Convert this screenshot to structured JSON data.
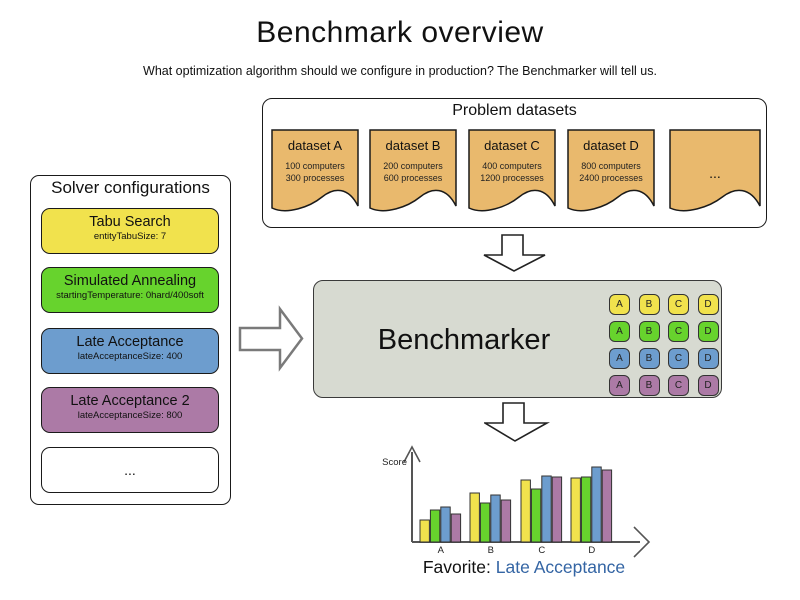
{
  "title": "Benchmark overview",
  "subtitle": "What optimization algorithm should we configure in production? The Benchmarker will tell us.",
  "problem_datasets": {
    "title": "Problem datasets",
    "card_color": "#e9b96d",
    "datasets": [
      {
        "name": "dataset A",
        "computers": "100 computers",
        "processes": "300 processes"
      },
      {
        "name": "dataset B",
        "computers": "200 computers",
        "processes": "600 processes"
      },
      {
        "name": "dataset C",
        "computers": "400 computers",
        "processes": "1200 processes"
      },
      {
        "name": "dataset D",
        "computers": "800 computers",
        "processes": "2400 processes"
      },
      {
        "name": "...",
        "computers": "",
        "processes": ""
      }
    ]
  },
  "solver_configurations": {
    "title": "Solver configurations",
    "solvers": [
      {
        "name": "Tabu Search",
        "config": "entityTabuSize: 7",
        "color": "#f1e24d"
      },
      {
        "name": "Simulated Annealing",
        "config": "startingTemperature: 0hard/400soft",
        "color": "#67d32d"
      },
      {
        "name": "Late Acceptance",
        "config": "lateAcceptanceSize: 400",
        "color": "#6d9dce"
      },
      {
        "name": "Late Acceptance 2",
        "config": "lateAcceptanceSize: 800",
        "color": "#ac7aa6"
      },
      {
        "name": "...",
        "config": "",
        "color": "#ffffff"
      }
    ]
  },
  "benchmarker": {
    "label": "Benchmarker",
    "grid": {
      "columns": [
        "A",
        "B",
        "C",
        "D"
      ],
      "row_colors": [
        "#f1e24d",
        "#67d32d",
        "#6d9dce",
        "#ac7aa6"
      ]
    }
  },
  "chart_data": {
    "type": "bar",
    "title": "",
    "xlabel": "",
    "ylabel": "Score",
    "categories": [
      "A",
      "B",
      "C",
      "D"
    ],
    "series": [
      {
        "name": "Tabu Search",
        "color": "#f1e24d",
        "values": [
          22,
          49,
          62,
          64
        ]
      },
      {
        "name": "Simulated Annealing",
        "color": "#67d32d",
        "values": [
          32,
          39,
          53,
          65
        ]
      },
      {
        "name": "Late Acceptance",
        "color": "#6d9dce",
        "values": [
          35,
          47,
          66,
          75
        ]
      },
      {
        "name": "Late Acceptance 2",
        "color": "#ac7aa6",
        "values": [
          28,
          42,
          65,
          72
        ]
      }
    ],
    "ylim": [
      0,
      80
    ],
    "grid": false,
    "legend": false
  },
  "favorite": {
    "label": "Favorite:",
    "value": "Late Acceptance",
    "value_color": "#3465a4"
  }
}
